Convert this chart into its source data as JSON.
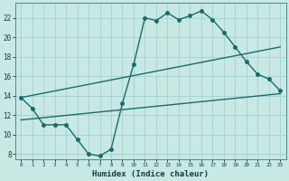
{
  "xlabel": "Humidex (Indice chaleur)",
  "bg_color": "#c8e8e4",
  "grid_color": "#a8d4d0",
  "line_color": "#1a6b6b",
  "xlim": [
    -0.5,
    23.5
  ],
  "ylim": [
    7.5,
    23.5
  ],
  "xticks": [
    0,
    1,
    2,
    3,
    4,
    5,
    6,
    7,
    8,
    9,
    10,
    11,
    12,
    13,
    14,
    15,
    16,
    17,
    18,
    19,
    20,
    21,
    22,
    23
  ],
  "yticks": [
    8,
    10,
    12,
    14,
    16,
    18,
    20,
    22
  ],
  "curve1_x": [
    0,
    1,
    2,
    3,
    4,
    5,
    6,
    7,
    8,
    9,
    10,
    11,
    12,
    13,
    14,
    15,
    16,
    17,
    18,
    19,
    20,
    21,
    22,
    23
  ],
  "curve1_y": [
    13.8,
    12.7,
    11.0,
    11.0,
    11.0,
    9.5,
    8.0,
    7.8,
    8.5,
    13.2,
    17.2,
    22.0,
    21.7,
    22.5,
    21.8,
    22.2,
    22.7,
    21.8,
    20.5,
    19.0,
    17.5,
    16.2,
    15.7,
    14.5
  ],
  "line1_x": [
    0,
    23
  ],
  "line1_y": [
    11.5,
    14.2
  ],
  "line2_x": [
    0,
    23
  ],
  "line2_y": [
    13.8,
    19.0
  ],
  "marker_size": 2.5,
  "line_width": 1.0
}
